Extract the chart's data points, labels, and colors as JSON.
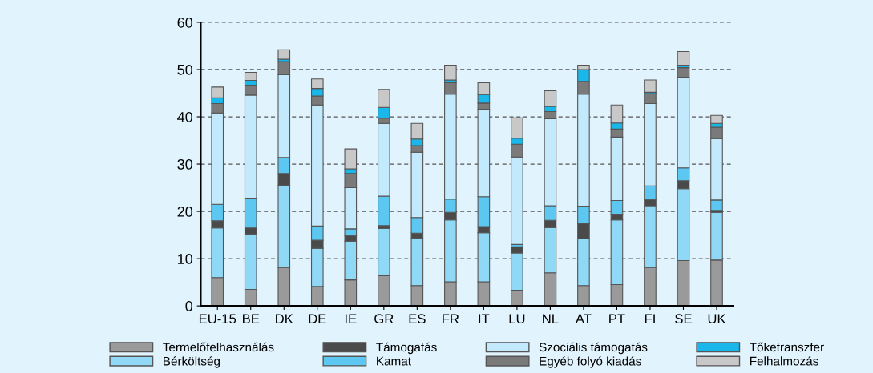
{
  "chart_data": {
    "type": "bar",
    "stacked": true,
    "categories": [
      "EU-15",
      "BE",
      "DK",
      "DE",
      "IE",
      "GR",
      "ES",
      "FR",
      "IT",
      "LU",
      "NL",
      "AT",
      "PT",
      "FI",
      "SE",
      "UK"
    ],
    "series": [
      {
        "name": "Termelőfelhasználás",
        "color": "#9a9a9a",
        "values": [
          6,
          3.5,
          8.1,
          4.1,
          5.5,
          6.4,
          4.3,
          5.1,
          5.1,
          3.3,
          7.0,
          4.3,
          4.5,
          8.1,
          9.6,
          9.7
        ]
      },
      {
        "name": "Bérköltség",
        "color": "#8fd8f6",
        "values": [
          10.5,
          11.7,
          17.4,
          8.1,
          8.2,
          10.0,
          10.0,
          13.1,
          10.4,
          7.9,
          9.6,
          9.9,
          13.7,
          13.1,
          15.2,
          10.1
        ]
      },
      {
        "name": "Támogatás",
        "color": "#4a4a4a",
        "values": [
          1.5,
          1.3,
          2.5,
          1.7,
          1.2,
          0.6,
          1.1,
          1.6,
          1.3,
          1.3,
          1.5,
          3.2,
          1.2,
          1.3,
          1.7,
          0.4
        ]
      },
      {
        "name": "Kamat",
        "color": "#5cc8f1",
        "values": [
          3.5,
          6.3,
          3.4,
          3.0,
          1.4,
          6.2,
          3.3,
          2.8,
          6.3,
          0.5,
          3.1,
          3.7,
          2.9,
          2.9,
          2.7,
          2.2
        ]
      },
      {
        "name": "Szociális támogatás",
        "color": "#c2eafc",
        "values": [
          19.3,
          21.8,
          17.5,
          25.6,
          8.7,
          15.4,
          13.8,
          22.2,
          18.5,
          18.5,
          18.4,
          23.7,
          13.4,
          17.4,
          19.2,
          13.0
        ]
      },
      {
        "name": "Egyéb folyó kiadás",
        "color": "#7a7a7a",
        "values": [
          2,
          2.1,
          2.8,
          1.9,
          3.0,
          1.1,
          1.4,
          2.4,
          1.3,
          2.7,
          1.5,
          2.7,
          1.7,
          2.1,
          2.0,
          2.4
        ]
      },
      {
        "name": "Tőketranszfer",
        "color": "#1ab7ea",
        "values": [
          1.2,
          1.0,
          0.5,
          1.6,
          1.0,
          2.3,
          1.4,
          0.6,
          1.8,
          1.3,
          1.1,
          2.5,
          1.3,
          0.3,
          0.5,
          0.8
        ]
      },
      {
        "name": "Felhalmozás",
        "color": "#c8c8c8",
        "values": [
          2.3,
          1.7,
          2.0,
          2.0,
          4.2,
          3.8,
          3.3,
          3.1,
          2.5,
          4.3,
          3.3,
          0.9,
          3.8,
          2.6,
          2.9,
          1.7
        ]
      }
    ],
    "ylim": [
      0,
      60
    ],
    "yticks": [
      0,
      10,
      20,
      30,
      40,
      50,
      60
    ],
    "grid": "y",
    "legend": "bottom"
  }
}
